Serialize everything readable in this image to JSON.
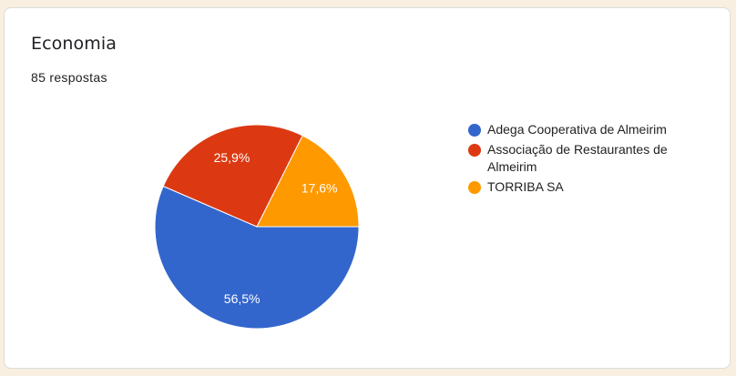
{
  "card": {
    "title": "Economia",
    "responses": "85 respostas"
  },
  "chart_data": {
    "type": "pie",
    "categories": [
      "Adega Cooperativa de Almeirim",
      "Associação de Restaurantes de Almeirim",
      "TORRIBA SA"
    ],
    "values": [
      56.5,
      25.9,
      17.6
    ],
    "labels": [
      "56,5%",
      "25,9%",
      "17,6%"
    ],
    "colors": [
      "#3366cc",
      "#dc3912",
      "#ff9900"
    ],
    "legend_position": "right"
  }
}
